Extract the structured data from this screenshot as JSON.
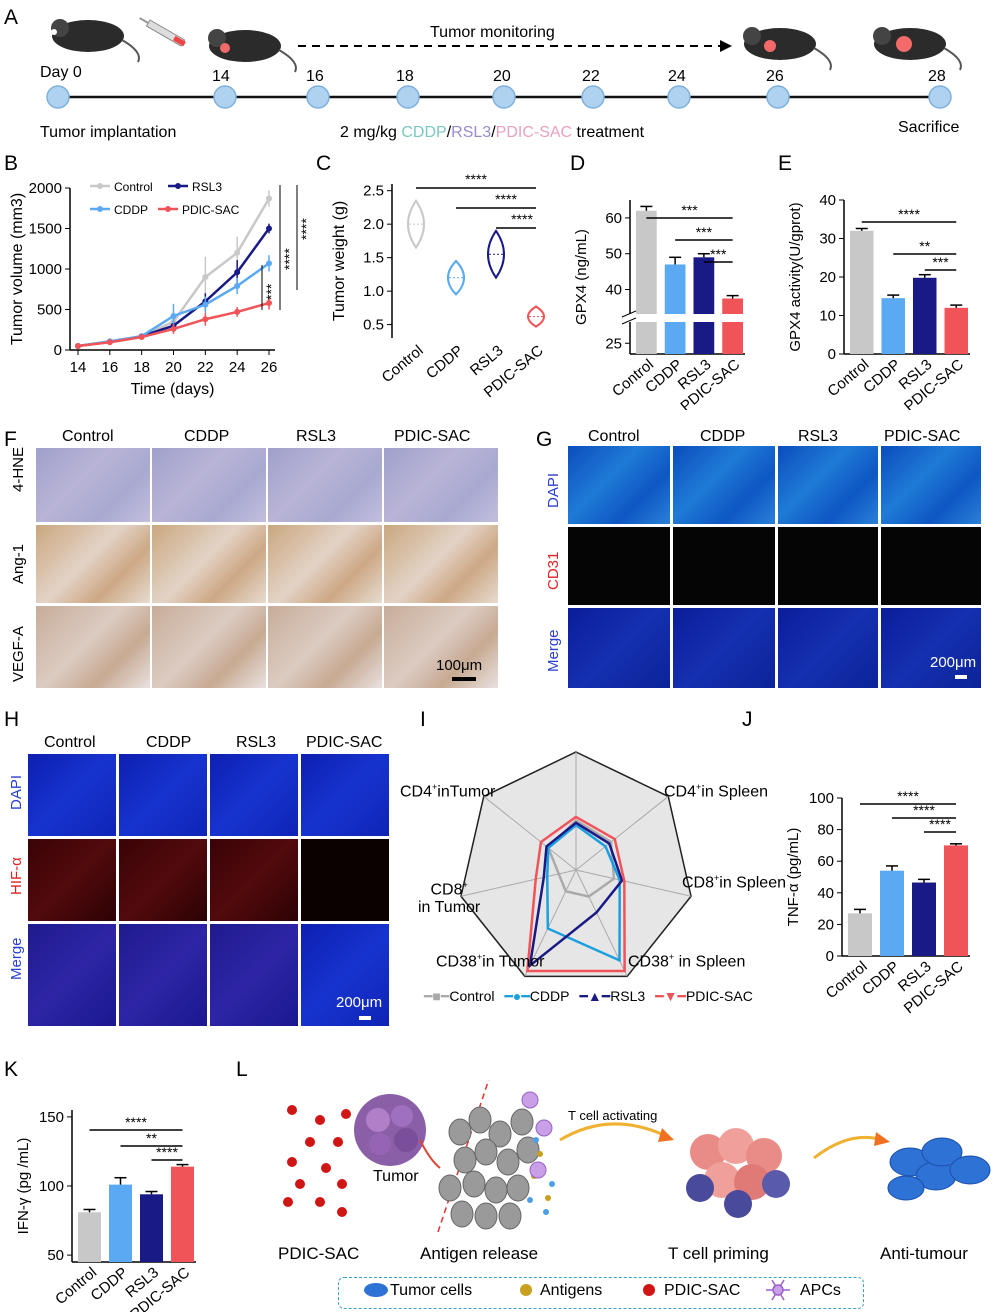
{
  "panels": {
    "A": "A",
    "B": "B",
    "C": "C",
    "D": "D",
    "E": "E",
    "F": "F",
    "G": "G",
    "H": "H",
    "I": "I",
    "J": "J",
    "K": "K",
    "L": "L"
  },
  "timeline": {
    "days": [
      "Day 0",
      "14",
      "16",
      "18",
      "20",
      "22",
      "24",
      "26",
      "28"
    ],
    "monitoring": "Tumor monitoring",
    "implantation": "Tumor implantation",
    "treatment_prefix": "2 mg/kg ",
    "treat_cddp": "CDDP",
    "treat_rsl3": "RSL3",
    "treat_pdic": "PDIC-SAC",
    "treatment_suffix": " treatment",
    "sacrifice": "Sacrifice"
  },
  "colors": {
    "control": "#c8c8c8",
    "cddp": "#5aa9f2",
    "rsl3": "#1a1a86",
    "pdic": "#f05458",
    "cddp_text": "#7bc8c0",
    "rsl3_text": "#9b8ad0",
    "pdic_text": "#e8a0c0"
  },
  "chart_data": [
    {
      "id": "B",
      "type": "line",
      "xlabel": "Time (days)",
      "ylabel": "Tumor volume (mm3)",
      "x": [
        14,
        16,
        18,
        20,
        22,
        24,
        26
      ],
      "xticks": [
        "14",
        "16",
        "18",
        "20",
        "22",
        "24",
        "26"
      ],
      "yticks": [
        "0",
        "500",
        "1000",
        "1500",
        "2000"
      ],
      "ylim": [
        0,
        2000
      ],
      "series": [
        {
          "name": "Control",
          "values": [
            50,
            110,
            170,
            350,
            900,
            1200,
            1870
          ],
          "err": [
            10,
            20,
            30,
            80,
            250,
            200,
            100
          ]
        },
        {
          "name": "RSL3",
          "values": [
            50,
            100,
            170,
            300,
            600,
            960,
            1500
          ],
          "err": [
            10,
            20,
            30,
            60,
            100,
            150,
            60
          ]
        },
        {
          "name": "CDDP",
          "values": [
            50,
            105,
            170,
            420,
            560,
            790,
            1070
          ],
          "err": [
            10,
            20,
            30,
            150,
            100,
            100,
            100
          ]
        },
        {
          "name": "PDIC-SAC",
          "values": [
            50,
            95,
            160,
            260,
            380,
            470,
            580
          ],
          "err": [
            10,
            20,
            30,
            60,
            80,
            60,
            80
          ]
        }
      ],
      "sig": [
        "***",
        "****",
        "****"
      ]
    },
    {
      "id": "C",
      "type": "violin",
      "ylabel": "Tumor weight (g)",
      "categories": [
        "Control",
        "CDDP",
        "RSL3",
        "PDIC-SAC"
      ],
      "values": [
        2.0,
        1.2,
        1.55,
        0.62
      ],
      "yticks": [
        "0.5",
        "1.0",
        "1.5",
        "2.0",
        "2.5"
      ],
      "ylim": [
        0.3,
        2.6
      ],
      "sig": [
        "****",
        "****",
        "****"
      ]
    },
    {
      "id": "D",
      "type": "bar",
      "ylabel": "GPX4 (ng/mL)",
      "categories": [
        "Control",
        "CDDP",
        "RSL3",
        "PDIC-SAC"
      ],
      "values": [
        62,
        47,
        49,
        37.5
      ],
      "err": [
        1.2,
        2,
        1,
        0.8
      ],
      "yticks": [
        "25",
        "40",
        "50",
        "60"
      ],
      "sig": [
        "***",
        "***",
        "***"
      ]
    },
    {
      "id": "E",
      "type": "bar",
      "ylabel": "GPX4 activity(U/gprot)",
      "categories": [
        "Control",
        "CDDP",
        "RSL3",
        "PDIC-SAC"
      ],
      "values": [
        32,
        14.5,
        19.8,
        12
      ],
      "err": [
        0.6,
        0.8,
        0.8,
        0.7
      ],
      "yticks": [
        "0",
        "10",
        "20",
        "30",
        "40"
      ],
      "ylim": [
        0,
        40
      ],
      "sig": [
        "****",
        "**",
        "***"
      ]
    },
    {
      "id": "J",
      "type": "bar",
      "ylabel": "TNF-α (pg/mL)",
      "categories": [
        "Control",
        "CDDP",
        "RSL3",
        "PDIC-SAC"
      ],
      "values": [
        27,
        54,
        46.5,
        70
      ],
      "err": [
        2.5,
        3,
        2,
        1
      ],
      "yticks": [
        "0",
        "20",
        "40",
        "60",
        "80",
        "100"
      ],
      "ylim": [
        0,
        100
      ],
      "sig": [
        "****",
        "****",
        "****"
      ]
    },
    {
      "id": "K",
      "type": "bar",
      "ylabel": "IFN-γ (pg /mL)",
      "categories": [
        "Control",
        "CDDP",
        "RSL3",
        "PDIC-SAC"
      ],
      "values": [
        81,
        101,
        94,
        114
      ],
      "err": [
        2,
        5,
        2,
        1.5
      ],
      "yticks": [
        "50",
        "100",
        "150"
      ],
      "ylim": [
        50,
        150
      ],
      "sig": [
        "****",
        "**",
        "****"
      ]
    },
    {
      "id": "I",
      "type": "radar",
      "axes": [
        "CD4+ in Spleen",
        "CD8+ in Spleen",
        "CD38+ in Spleen",
        "CD38+ in Tumor",
        "CD8+ in Tumor",
        "CD4+ inTumor",
        "top"
      ],
      "series": [
        {
          "name": "Control",
          "values": [
            0.38,
            0.33,
            0.25,
            0.2,
            0.15,
            0.3,
            0.42
          ]
        },
        {
          "name": "CDDP",
          "values": [
            0.32,
            0.38,
            0.85,
            0.55,
            0.25,
            0.3,
            0.38
          ]
        },
        {
          "name": "RSL3",
          "values": [
            0.36,
            0.4,
            0.4,
            0.9,
            0.28,
            0.32,
            0.4
          ]
        },
        {
          "name": "PDIC-SAC",
          "values": [
            0.42,
            0.42,
            0.95,
            0.95,
            0.35,
            0.38,
            0.45
          ]
        }
      ]
    }
  ],
  "chartB": {
    "legend_control": "Control",
    "legend_rsl3": "RSL3",
    "legend_cddp": "CDDP",
    "legend_pdic": "PDIC-SAC"
  },
  "panelF": {
    "cols": [
      "Control",
      "CDDP",
      "RSL3",
      "PDIC-SAC"
    ],
    "rows": [
      "4-HNE",
      "Ang-1",
      "VEGF-A"
    ],
    "scale": "100μm"
  },
  "panelG": {
    "cols": [
      "Control",
      "CDDP",
      "RSL3",
      "PDIC-SAC"
    ],
    "rows": [
      "DAPI",
      "CD31",
      "Merge"
    ],
    "scale": "200μm"
  },
  "panelH": {
    "cols": [
      "Control",
      "CDDP",
      "RSL3",
      "PDIC-SAC"
    ],
    "rows": [
      "DAPI",
      "HIF-α",
      "Merge"
    ],
    "scale": "200μm"
  },
  "panelI": {
    "label_cd4_tumor_a": "CD4",
    "label_cd4_tumor_b": "inTumor",
    "label_cd4_spleen_a": "CD4",
    "label_cd4_spleen_b": "in Spleen",
    "label_cd8_spleen_a": "CD8",
    "label_cd8_spleen_b": "in Spleen",
    "label_cd38_spleen_a": "CD38",
    "label_cd38_spleen_b": " in Spleen",
    "label_cd38_tumor_a": "CD38",
    "label_cd38_tumor_b": "in Tumor",
    "label_cd8_tumor_a": "CD8",
    "label_cd8_tumor_b": "in Tumor",
    "sup": "+",
    "legend": [
      "Control",
      "CDDP",
      "RSL3",
      "PDIC-SAC"
    ]
  },
  "panelL": {
    "tumor": "Tumor",
    "t_activating": "T cell activating",
    "pdic": "PDIC-SAC",
    "antigen_release": "Antigen release",
    "t_priming": "T cell priming",
    "anti_tumour": "Anti-tumour",
    "legend": [
      "Tumor cells",
      "Antigens",
      "PDIC-SAC",
      "APCs"
    ]
  }
}
